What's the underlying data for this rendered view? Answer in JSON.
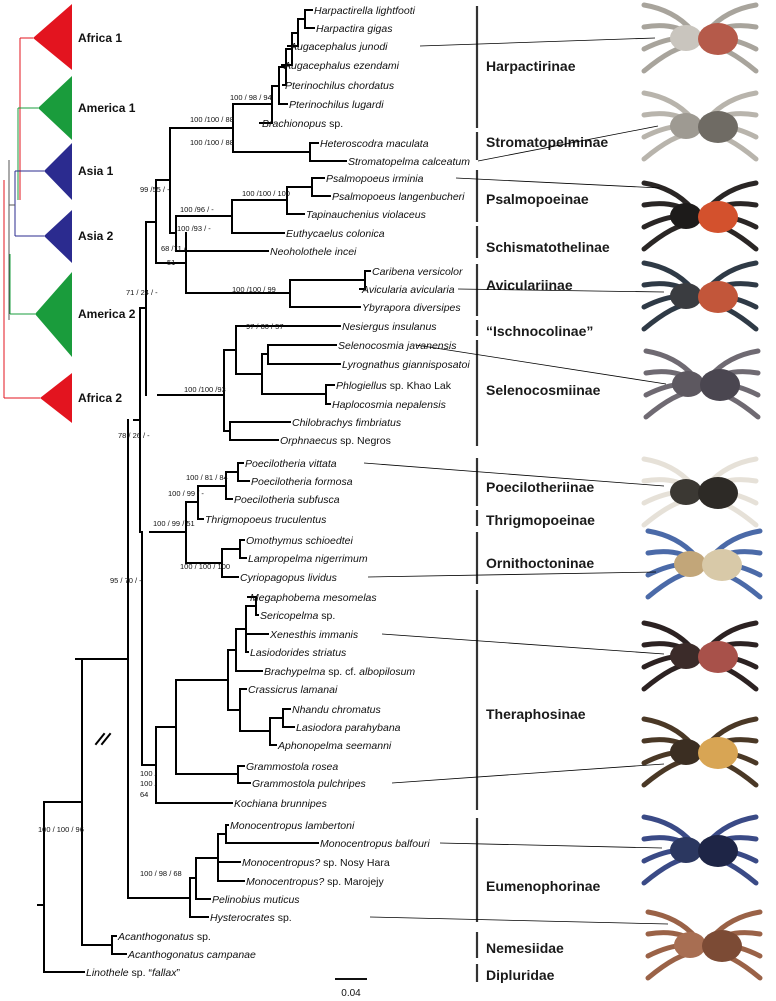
{
  "mini_tree": {
    "clades": [
      {
        "label": "Africa 1",
        "color": "#e3141f"
      },
      {
        "label": "America 1",
        "color": "#1a9c3c"
      },
      {
        "label": "Asia 1",
        "color": "#2b2b8f"
      },
      {
        "label": "Asia 2",
        "color": "#2b2b8f"
      },
      {
        "label": "America 2",
        "color": "#1a9c3c"
      },
      {
        "label": "Africa 2",
        "color": "#e3141f"
      }
    ]
  },
  "taxa": [
    {
      "id": "harpactirella-lightfooti",
      "parts": [
        {
          "t": "Harpactirella lightfooti",
          "i": true
        }
      ]
    },
    {
      "id": "harpactira-gigas",
      "parts": [
        {
          "t": "Harpactira gigas",
          "i": true
        }
      ]
    },
    {
      "id": "augacephalus-junodi",
      "parts": [
        {
          "t": "Augacephalus junodi",
          "i": true
        }
      ]
    },
    {
      "id": "augacephalus-ezendami",
      "parts": [
        {
          "t": "Augacephalus ezendami",
          "i": true
        }
      ]
    },
    {
      "id": "pterinochilus-chordatus",
      "parts": [
        {
          "t": "Pterinochilus chordatus",
          "i": true
        }
      ]
    },
    {
      "id": "pterinochilus-lugardi",
      "parts": [
        {
          "t": "Pterinochilus lugardi",
          "i": true
        }
      ]
    },
    {
      "id": "brachionopus-sp",
      "parts": [
        {
          "t": "Brachionopus",
          "i": true
        },
        {
          "t": " sp.",
          "i": false
        }
      ]
    },
    {
      "id": "heteroscodra-maculata",
      "parts": [
        {
          "t": "Heteroscodra maculata",
          "i": true
        }
      ]
    },
    {
      "id": "stromatopelma-calceatum",
      "parts": [
        {
          "t": "Stromatopelma calceatum",
          "i": true
        }
      ]
    },
    {
      "id": "psalmopoeus-irminia",
      "parts": [
        {
          "t": "Psalmopoeus irminia",
          "i": true
        }
      ]
    },
    {
      "id": "psalmopoeus-langenbucheri",
      "parts": [
        {
          "t": "Psalmopoeus langenbucheri",
          "i": true
        }
      ]
    },
    {
      "id": "tapinauchenius-violaceus",
      "parts": [
        {
          "t": "Tapinauchenius violaceus",
          "i": true
        }
      ]
    },
    {
      "id": "euthycaelus-colonica",
      "parts": [
        {
          "t": "Euthycaelus colonica",
          "i": true
        }
      ]
    },
    {
      "id": "neoholothele-incei",
      "parts": [
        {
          "t": "Neoholothele incei",
          "i": true
        }
      ]
    },
    {
      "id": "caribena-versicolor",
      "parts": [
        {
          "t": "Caribena versicolor",
          "i": true
        }
      ]
    },
    {
      "id": "avicularia-avicularia",
      "parts": [
        {
          "t": "Avicularia avicularia",
          "i": true
        }
      ]
    },
    {
      "id": "ybyrapora-diversipes",
      "parts": [
        {
          "t": "Ybyrapora diversipes",
          "i": true
        }
      ]
    },
    {
      "id": "nesiergus-insulanus",
      "parts": [
        {
          "t": "Nesiergus insulanus",
          "i": true
        }
      ]
    },
    {
      "id": "selenocosmia-javanensis",
      "parts": [
        {
          "t": "Selenocosmia javanensis",
          "i": true
        }
      ]
    },
    {
      "id": "lyrognathus-giannisposatoi",
      "parts": [
        {
          "t": "Lyrognathus giannisposatoi",
          "i": true
        }
      ]
    },
    {
      "id": "phlogiellus-khao-lak",
      "parts": [
        {
          "t": "Phlogiellus",
          "i": true
        },
        {
          "t": " sp. Khao Lak",
          "i": false
        }
      ]
    },
    {
      "id": "haplocosmia-nepalensis",
      "parts": [
        {
          "t": "Haplocosmia nepalensis",
          "i": true
        }
      ]
    },
    {
      "id": "chilobrachys-fimbriatus",
      "parts": [
        {
          "t": "Chilobrachys fimbriatus",
          "i": true
        }
      ]
    },
    {
      "id": "orphnaecus-negros",
      "parts": [
        {
          "t": "Orphnaecus",
          "i": true
        },
        {
          "t": "  sp. Negros",
          "i": false
        }
      ]
    },
    {
      "id": "poecilotheria-vittata",
      "parts": [
        {
          "t": "Poecilotheria vittata",
          "i": true
        }
      ]
    },
    {
      "id": "poecilotheria-formosa",
      "parts": [
        {
          "t": "Poecilotheria formosa",
          "i": true
        }
      ]
    },
    {
      "id": "poecilotheria-subfusca",
      "parts": [
        {
          "t": "Poecilotheria subfusca",
          "i": true
        }
      ]
    },
    {
      "id": "thrigmopoeus-truculentus",
      "parts": [
        {
          "t": "Thrigmopoeus truculentus",
          "i": true
        }
      ]
    },
    {
      "id": "omothymus-schioedtei",
      "parts": [
        {
          "t": "Omothymus schioedtei",
          "i": true
        }
      ]
    },
    {
      "id": "lampropelma-nigerrimum",
      "parts": [
        {
          "t": "Lampropelma nigerrimum",
          "i": true
        }
      ]
    },
    {
      "id": "cyriopagopus-lividus",
      "parts": [
        {
          "t": "Cyriopagopus lividus",
          "i": true
        }
      ]
    },
    {
      "id": "megaphobema-mesomelas",
      "parts": [
        {
          "t": "Megaphobema mesomelas",
          "i": true
        }
      ]
    },
    {
      "id": "sericopelma-sp",
      "parts": [
        {
          "t": "Sericopelma",
          "i": true
        },
        {
          "t": " sp.",
          "i": false
        }
      ]
    },
    {
      "id": "xenesthis-immanis",
      "parts": [
        {
          "t": "Xenesthis immanis",
          "i": true
        }
      ]
    },
    {
      "id": "lasiodorides-striatus",
      "parts": [
        {
          "t": "Lasiodorides striatus",
          "i": true
        }
      ]
    },
    {
      "id": "brachypelma-albopilosum",
      "parts": [
        {
          "t": "Brachypelma",
          "i": true
        },
        {
          "t": " sp. cf. ",
          "i": false
        },
        {
          "t": "albopilosum",
          "i": true
        }
      ]
    },
    {
      "id": "crassicrus-lamanai",
      "parts": [
        {
          "t": "Crassicrus lamanai",
          "i": true
        }
      ]
    },
    {
      "id": "nhandu-chromatus",
      "parts": [
        {
          "t": "Nhandu chromatus",
          "i": true
        }
      ]
    },
    {
      "id": "lasiodora-parahybana",
      "parts": [
        {
          "t": "Lasiodora parahybana",
          "i": true
        }
      ]
    },
    {
      "id": "aphonopelma-seemanni",
      "parts": [
        {
          "t": "Aphonopelma seemanni",
          "i": true
        }
      ]
    },
    {
      "id": "grammostola-rosea",
      "parts": [
        {
          "t": "Grammostola rosea",
          "i": true
        }
      ]
    },
    {
      "id": "grammostola-pulchripes",
      "parts": [
        {
          "t": "Grammostola pulchripes",
          "i": true
        }
      ]
    },
    {
      "id": "kochiana-brunnipes",
      "parts": [
        {
          "t": "Kochiana brunnipes",
          "i": true
        }
      ]
    },
    {
      "id": "monocentropus-lambertoni",
      "parts": [
        {
          "t": "Monocentropus lambertoni",
          "i": true
        }
      ]
    },
    {
      "id": "monocentropus-balfouri",
      "parts": [
        {
          "t": "Monocentropus balfouri",
          "i": true
        }
      ]
    },
    {
      "id": "monocentropus-nosy-hara",
      "parts": [
        {
          "t": "Monocentropus?",
          "i": true
        },
        {
          "t": " sp. Nosy Hara",
          "i": false
        }
      ]
    },
    {
      "id": "monocentropus-marojejy",
      "parts": [
        {
          "t": "Monocentropus?",
          "i": true
        },
        {
          "t": " sp. Marojejy",
          "i": false
        }
      ]
    },
    {
      "id": "pelinobius-muticus",
      "parts": [
        {
          "t": "Pelinobius muticus",
          "i": true
        }
      ]
    },
    {
      "id": "hysterocrates-sp",
      "parts": [
        {
          "t": "Hysterocrates",
          "i": true
        },
        {
          "t": " sp.",
          "i": false
        }
      ]
    },
    {
      "id": "acanthogonatus-sp",
      "parts": [
        {
          "t": "Acanthogonatus",
          "i": true
        },
        {
          "t": " sp.",
          "i": false
        }
      ]
    },
    {
      "id": "acanthogonatus-campanae",
      "parts": [
        {
          "t": "Acanthogonatus campanae",
          "i": true
        }
      ]
    },
    {
      "id": "linothele-fallax",
      "parts": [
        {
          "t": "Linothele",
          "i": true
        },
        {
          "t": " sp. “",
          "i": false
        },
        {
          "t": "fallax",
          "i": true
        },
        {
          "t": "”",
          "i": false
        }
      ]
    }
  ],
  "supports": [
    {
      "id": "harpactirinae",
      "text": "100 / 98 / 94"
    },
    {
      "id": "harp-strom",
      "text": "100 /100 / 88"
    },
    {
      "id": "stromatopelminae",
      "text": "100 /100 / 88"
    },
    {
      "id": "psalmopoeinae",
      "text": "100 /100 / 100"
    },
    {
      "id": "psalmo-schism",
      "text": "100 /96 / -"
    },
    {
      "id": "psalmo-schism-2",
      "text": "100 /93 / -"
    },
    {
      "id": "africa1-group",
      "text": "99 /55 / -"
    },
    {
      "id": "avicularia-group",
      "text": "68 /71 /"
    },
    {
      "id": "avicularia-group-2",
      "text": "51"
    },
    {
      "id": "avicularia",
      "text": "100 /100 / 99"
    },
    {
      "id": "group-71",
      "text": "71 / 24 / -"
    },
    {
      "id": "ischnocolinae",
      "text": "97 / 80 / 57"
    },
    {
      "id": "selenocosmiinae",
      "text": "100 /100 /93"
    },
    {
      "id": "group-78",
      "text": "78 / 26 / -"
    },
    {
      "id": "poecilotheria",
      "text": "100 / 81 / 84"
    },
    {
      "id": "poecilo-thrigmo",
      "text": "100 / 99 / -"
    },
    {
      "id": "ornitho-group",
      "text": "100 / 99 / 51"
    },
    {
      "id": "ornithoctoninae",
      "text": "100 / 100 / 100"
    },
    {
      "id": "group-95",
      "text": "95 / 70 / -"
    },
    {
      "id": "theraphosinae-a",
      "text": "100 /"
    },
    {
      "id": "theraphosinae-b",
      "text": "100 /"
    },
    {
      "id": "theraphosinae-c",
      "text": "64"
    },
    {
      "id": "eumenophorinae",
      "text": "100 / 98 / 68"
    },
    {
      "id": "root",
      "text": "100 / 100 / 96"
    }
  ],
  "families": [
    {
      "id": "harpactirinae",
      "label": "Harpactirinae"
    },
    {
      "id": "stromatopelminae",
      "label": "Stromatopelminae"
    },
    {
      "id": "psalmopoeinae",
      "label": "Psalmopoeinae"
    },
    {
      "id": "schismatothelinae",
      "label": "Schismatothelinae"
    },
    {
      "id": "aviculariinae",
      "label": "Aviculariinae"
    },
    {
      "id": "ischnocolinae",
      "label": "“Ischnocolinae”"
    },
    {
      "id": "selenocosmiinae",
      "label": "Selenocosmiinae"
    },
    {
      "id": "poecilotheriinae",
      "label": "Poecilotheriinae"
    },
    {
      "id": "thrigmopoeinae",
      "label": "Thrigmopoeinae"
    },
    {
      "id": "ornithoctoninae",
      "label": "Ornithoctoninae"
    },
    {
      "id": "theraphosinae",
      "label": "Theraphosinae"
    },
    {
      "id": "eumenophorinae",
      "label": "Eumenophorinae"
    },
    {
      "id": "nemesiidae",
      "label": "Nemesiidae"
    },
    {
      "id": "dipluridae",
      "label": "Dipluridae"
    }
  ],
  "scale": {
    "label": "0.04"
  },
  "photos": [
    {
      "id": "harpactirinae-spider",
      "body": "#c9c5be",
      "legs": "#a8a49c",
      "accent": "#b55a4a"
    },
    {
      "id": "stromatopelminae-spider",
      "body": "#9e9a92",
      "legs": "#b8b4ac",
      "accent": "#6f6b64"
    },
    {
      "id": "psalmopoeinae-spider",
      "body": "#1d1b1a",
      "legs": "#2a2625",
      "accent": "#d3512d"
    },
    {
      "id": "avicularia-spider",
      "body": "#3a3c40",
      "legs": "#2f3a46",
      "accent": "#c2563a"
    },
    {
      "id": "selenocosmiinae-spider",
      "body": "#5d5860",
      "legs": "#6f6a72",
      "accent": "#4a4650"
    },
    {
      "id": "poecilotheria-spider",
      "body": "#3b3833",
      "legs": "#e6e1d8",
      "accent": "#2d2a26"
    },
    {
      "id": "ornithoctoninae-spider",
      "body": "#c2a679",
      "legs": "#4b6aa8",
      "accent": "#d8c9a8"
    },
    {
      "id": "xenesthis-spider",
      "body": "#3b2b29",
      "legs": "#2c2222",
      "accent": "#a8514a"
    },
    {
      "id": "grammostola-spider",
      "body": "#3b2e22",
      "legs": "#4a3826",
      "accent": "#d8a554"
    },
    {
      "id": "monocentropus-spider",
      "body": "#2b3760",
      "legs": "#3a4a86",
      "accent": "#1e2546"
    },
    {
      "id": "hysterocrates-spider",
      "body": "#a86e52",
      "legs": "#9a6247",
      "accent": "#7c4b35"
    }
  ]
}
